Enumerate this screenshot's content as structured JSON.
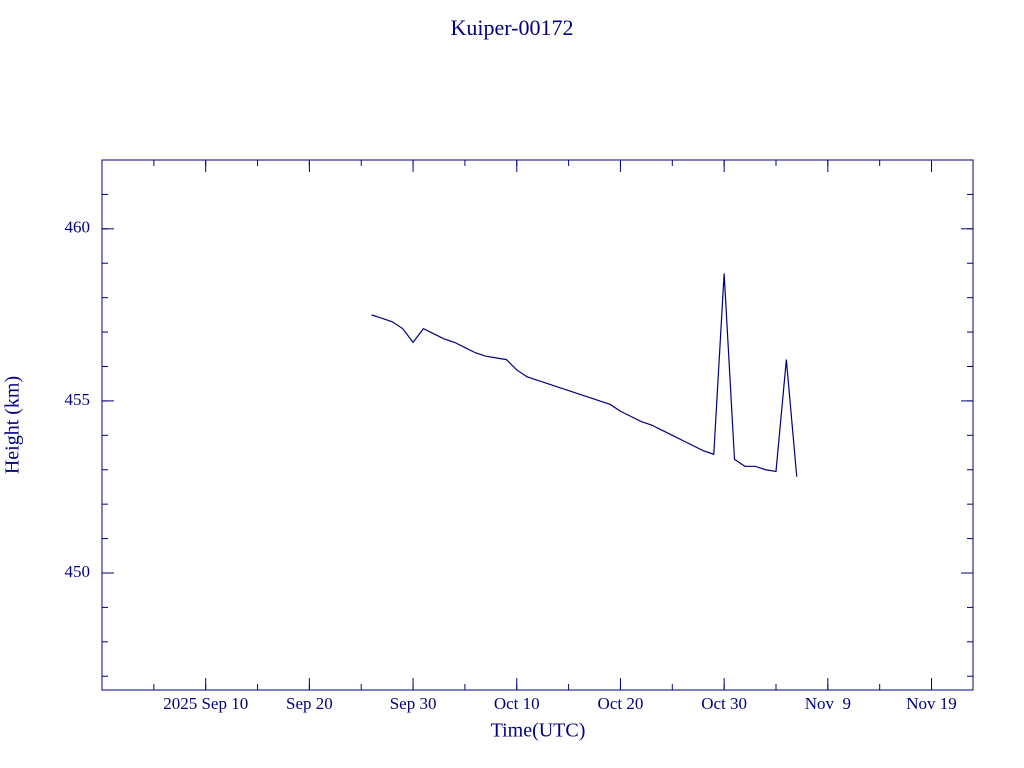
{
  "chart_data": {
    "type": "line",
    "title": "Kuiper-00172",
    "x_label": "Time(UTC)",
    "y_label": "Height (km)",
    "x": [
      "2025-09-26",
      "2025-09-27",
      "2025-09-28",
      "2025-09-29",
      "2025-09-30",
      "2025-10-01",
      "2025-10-02",
      "2025-10-03",
      "2025-10-04",
      "2025-10-05",
      "2025-10-06",
      "2025-10-07",
      "2025-10-08",
      "2025-10-09",
      "2025-10-10",
      "2025-10-11",
      "2025-10-12",
      "2025-10-13",
      "2025-10-14",
      "2025-10-15",
      "2025-10-16",
      "2025-10-17",
      "2025-10-18",
      "2025-10-19",
      "2025-10-20",
      "2025-10-21",
      "2025-10-22",
      "2025-10-23",
      "2025-10-24",
      "2025-10-25",
      "2025-10-26",
      "2025-10-27",
      "2025-10-28",
      "2025-10-29",
      "2025-10-30",
      "2025-10-31",
      "2025-11-01",
      "2025-11-02",
      "2025-11-03",
      "2025-11-04",
      "2025-11-05",
      "2025-11-06"
    ],
    "series": [
      {
        "name": "Height",
        "color": "#000080",
        "values": [
          457.5,
          457.4,
          457.3,
          457.1,
          456.7,
          457.1,
          456.95,
          456.8,
          456.7,
          456.55,
          456.4,
          456.3,
          456.25,
          456.2,
          455.9,
          455.7,
          455.6,
          455.5,
          455.4,
          455.3,
          455.2,
          455.1,
          455.0,
          454.9,
          454.7,
          454.55,
          454.4,
          454.3,
          454.15,
          454.0,
          453.85,
          453.7,
          453.55,
          453.45,
          458.7,
          453.3,
          453.1,
          453.1,
          453.0,
          452.95,
          456.2,
          452.8
        ]
      }
    ],
    "xlim": [
      "2025-08-31",
      "2025-11-23"
    ],
    "xticks": [
      {
        "value": "2025-09-10",
        "label": "2025 Sep 10"
      },
      {
        "value": "2025-09-20",
        "label": "Sep 20"
      },
      {
        "value": "2025-09-30",
        "label": "Sep 30"
      },
      {
        "value": "2025-10-10",
        "label": "Oct 10"
      },
      {
        "value": "2025-10-20",
        "label": "Oct 20"
      },
      {
        "value": "2025-10-30",
        "label": "Oct 30"
      },
      {
        "value": "2025-11-09",
        "label": "Nov  9"
      },
      {
        "value": "2025-11-19",
        "label": "Nov 19"
      }
    ],
    "ylim": [
      446.6,
      462
    ],
    "yticks": [
      450,
      455,
      460
    ],
    "grid": false
  }
}
